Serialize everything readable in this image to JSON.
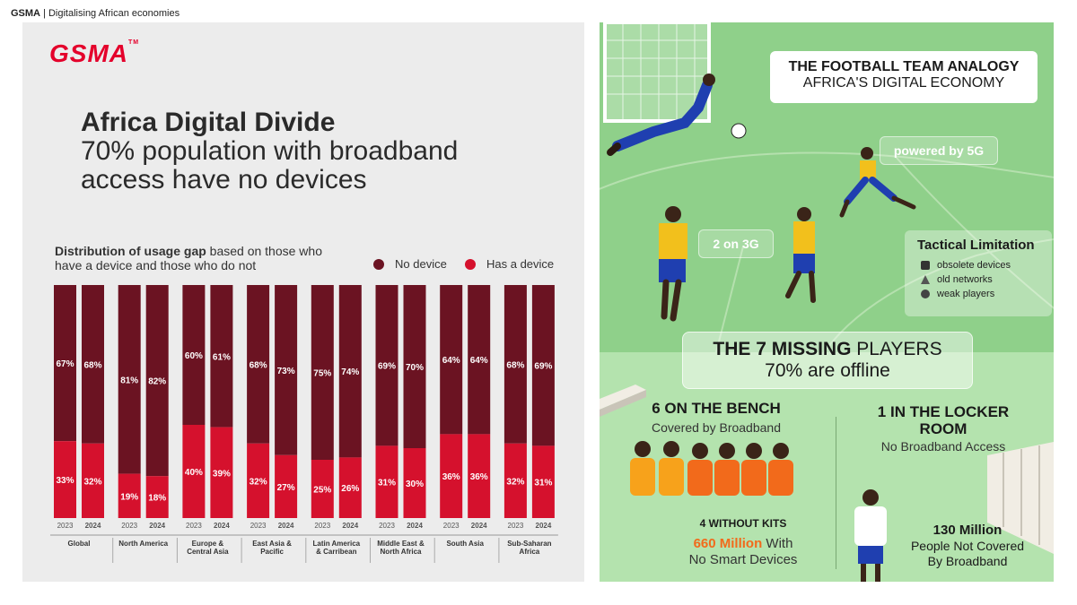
{
  "header": {
    "brand": "GSMA",
    "separator": "|",
    "subtitle": "Digitalising African economies"
  },
  "left": {
    "logo": "GSMA",
    "logo_tm": "TM",
    "title_bold": "Africa Digital Divide",
    "title_line2": "70% population with broadband",
    "title_line3": "access have no devices"
  },
  "chart_data": {
    "type": "bar",
    "stacked": true,
    "normalized_percent": true,
    "title_bold": "Distribution of usage gap",
    "title_rest": "based on those who have a device and those who do not",
    "legend_placement": "top-right",
    "colors": {
      "No device": "#6b1322",
      "Has a device": "#d5112d"
    },
    "years": [
      "2023",
      "2024"
    ],
    "regions": [
      {
        "name": "Global",
        "values": {
          "2023": {
            "no_device": 67,
            "has_device": 33
          },
          "2024": {
            "no_device": 68,
            "has_device": 32
          }
        }
      },
      {
        "name": "North America",
        "values": {
          "2023": {
            "no_device": 81,
            "has_device": 19
          },
          "2024": {
            "no_device": 82,
            "has_device": 18
          }
        }
      },
      {
        "name": "Europe & Central Asia",
        "values": {
          "2023": {
            "no_device": 60,
            "has_device": 40
          },
          "2024": {
            "no_device": 61,
            "has_device": 39
          }
        }
      },
      {
        "name": "East Asia & Pacific",
        "values": {
          "2023": {
            "no_device": 68,
            "has_device": 32
          },
          "2024": {
            "no_device": 73,
            "has_device": 27
          }
        }
      },
      {
        "name": "Latin America & Carribean",
        "values": {
          "2023": {
            "no_device": 75,
            "has_device": 25
          },
          "2024": {
            "no_device": 74,
            "has_device": 26
          }
        }
      },
      {
        "name": "Middle East & North Africa",
        "values": {
          "2023": {
            "no_device": 69,
            "has_device": 31
          },
          "2024": {
            "no_device": 70,
            "has_device": 30
          }
        }
      },
      {
        "name": "South Asia",
        "values": {
          "2023": {
            "no_device": 64,
            "has_device": 36
          },
          "2024": {
            "no_device": 64,
            "has_device": 36
          }
        }
      },
      {
        "name": "Sub-Saharan Africa",
        "values": {
          "2023": {
            "no_device": 68,
            "has_device": 32
          },
          "2024": {
            "no_device": 69,
            "has_device": 31
          }
        }
      }
    ],
    "series": [
      {
        "name": "No device",
        "key": "no_device"
      },
      {
        "name": "Has a device",
        "key": "has_device"
      }
    ]
  },
  "region_label_lines": [
    [
      "Global"
    ],
    [
      "North America"
    ],
    [
      "Europe &",
      "Central Asia"
    ],
    [
      "East Asia &",
      "Pacific"
    ],
    [
      "Latin America",
      "& Carribean"
    ],
    [
      "Middle East &",
      "North Africa"
    ],
    [
      "South Asia"
    ],
    [
      "Sub-Saharan",
      "Africa"
    ]
  ],
  "right": {
    "title_line1": "THE FOOTBALL TEAM ANALOGY",
    "title_line2": "AFRICA'S DIGITAL ECONOMY",
    "pill_5g": "powered by 5G",
    "pill_3g": "2 on 3G",
    "tactical": {
      "heading": "Tactical Limitation",
      "items": [
        "obsolete devices",
        "old networks",
        "weak players"
      ]
    },
    "missing_bold": "THE 7 MISSING",
    "missing_rest": "PLAYERS",
    "missing_sub": "70% are offline",
    "bench_title": "6 ON THE BENCH",
    "bench_sub": "Covered by Broadband",
    "kits": "4 WITHOUT KITS",
    "smart_highlight": "660 Million",
    "smart_with": "With",
    "smart_rest": "No Smart Devices",
    "locker_title_1": "1 IN THE LOCKER",
    "locker_title_2": "ROOM",
    "locker_sub": "No Broadband Access",
    "covered_bold": "130 Million",
    "covered_line2": "People Not Covered",
    "covered_line3": "By Broadband"
  }
}
